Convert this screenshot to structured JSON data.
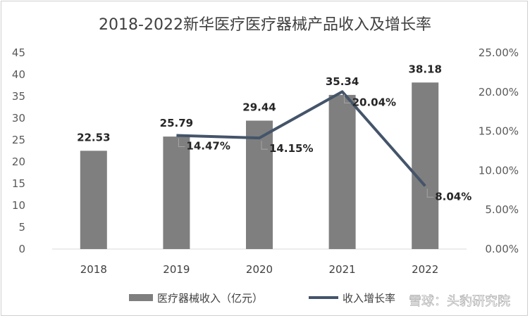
{
  "chart_data": {
    "type": "bar",
    "title": "2018-2022新华医疗医疗器械产品收入及增长率",
    "categories": [
      "2018",
      "2019",
      "2020",
      "2021",
      "2022"
    ],
    "series": [
      {
        "name": "医疗器械收入（亿元）",
        "type": "bar",
        "axis": "left",
        "color": "#7f7f7f",
        "values": [
          22.53,
          25.79,
          29.44,
          35.34,
          38.18
        ],
        "labels": [
          "22.53",
          "25.79",
          "29.44",
          "35.34",
          "38.18"
        ]
      },
      {
        "name": "收入增长率",
        "type": "line",
        "axis": "right",
        "color": "#44546a",
        "values": [
          null,
          14.47,
          14.15,
          20.04,
          8.04
        ],
        "labels": [
          null,
          "14.47%",
          "14.15%",
          "20.04%",
          "8.04%"
        ]
      }
    ],
    "y_left": {
      "ylim": [
        0,
        45
      ],
      "ticks": [
        "0",
        "5",
        "10",
        "15",
        "20",
        "25",
        "30",
        "35",
        "40",
        "45"
      ]
    },
    "y_right": {
      "ylim": [
        0,
        25
      ],
      "ticks": [
        "0.00%",
        "5.00%",
        "10.00%",
        "15.00%",
        "20.00%",
        "25.00%"
      ]
    },
    "grid": false,
    "legend": "bottom"
  },
  "watermark": "雪球：头豹研究院"
}
